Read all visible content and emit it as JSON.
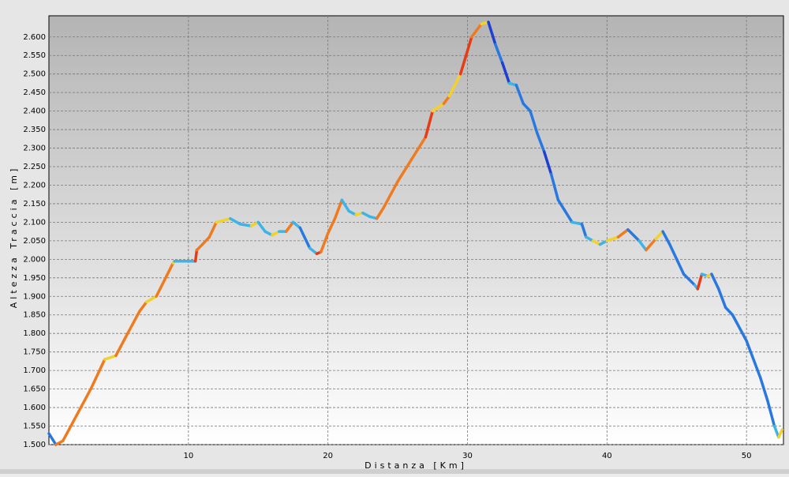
{
  "chart_data": {
    "type": "line",
    "xlabel": "Distanza [Km]",
    "ylabel": "Altezza Traccia [m]",
    "xlim": [
      0,
      52.65
    ],
    "ylim": [
      1500,
      2657
    ],
    "xticks": [
      10,
      20,
      30,
      40,
      50
    ],
    "yticks": [
      {
        "value": 1500,
        "label": "1.500"
      },
      {
        "value": 1550,
        "label": "1.550"
      },
      {
        "value": 1600,
        "label": "1.600"
      },
      {
        "value": 1650,
        "label": "1.650"
      },
      {
        "value": 1700,
        "label": "1.700"
      },
      {
        "value": 1750,
        "label": "1.750"
      },
      {
        "value": 1800,
        "label": "1.800"
      },
      {
        "value": 1850,
        "label": "1.850"
      },
      {
        "value": 1900,
        "label": "1.900"
      },
      {
        "value": 1950,
        "label": "1.950"
      },
      {
        "value": 2000,
        "label": "2.000"
      },
      {
        "value": 2050,
        "label": "2.050"
      },
      {
        "value": 2100,
        "label": "2.100"
      },
      {
        "value": 2150,
        "label": "2.150"
      },
      {
        "value": 2200,
        "label": "2.200"
      },
      {
        "value": 2250,
        "label": "2.250"
      },
      {
        "value": 2300,
        "label": "2.300"
      },
      {
        "value": 2350,
        "label": "2.350"
      },
      {
        "value": 2400,
        "label": "2.400"
      },
      {
        "value": 2450,
        "label": "2.450"
      },
      {
        "value": 2500,
        "label": "2.500"
      },
      {
        "value": 2550,
        "label": "2.550"
      },
      {
        "value": 2600,
        "label": "2.600"
      }
    ],
    "grid": true,
    "x": [
      0,
      0.5,
      1,
      2,
      3,
      4,
      4.8,
      5.5,
      6.5,
      7,
      7.7,
      8.9,
      9,
      10.5,
      10.6,
      11,
      11.5,
      12,
      13,
      13.7,
      14.5,
      15,
      15.5,
      16,
      16.5,
      17,
      17.5,
      18,
      18.7,
      19.2,
      19.5,
      20,
      20.5,
      21,
      21.5,
      22,
      22.5,
      23,
      23.5,
      24,
      25,
      26,
      27,
      27.5,
      28.3,
      28.7,
      29.5,
      30.3,
      31,
      31.5,
      32,
      32.5,
      33,
      33.5,
      34,
      34.5,
      35,
      35.5,
      36,
      36.5,
      37,
      37.5,
      38.2,
      38.5,
      39,
      39.5,
      40,
      40.8,
      41.5,
      42.3,
      42.8,
      43.5,
      44,
      44.5,
      45,
      45.5,
      46.3,
      46.5,
      46.8,
      47.2,
      47.5,
      48,
      48.5,
      49,
      50,
      51,
      51.5,
      52,
      52.3,
      52.55
    ],
    "values": [
      1530,
      1500,
      1510,
      1580,
      1650,
      1730,
      1740,
      1790,
      1860,
      1885,
      1900,
      1990,
      1995,
      1995,
      2025,
      2040,
      2060,
      2100,
      2110,
      2095,
      2090,
      2100,
      2075,
      2065,
      2075,
      2075,
      2100,
      2085,
      2030,
      2015,
      2020,
      2070,
      2110,
      2160,
      2130,
      2120,
      2125,
      2115,
      2110,
      2140,
      2210,
      2270,
      2330,
      2400,
      2420,
      2440,
      2500,
      2600,
      2635,
      2640,
      2580,
      2530,
      2475,
      2470,
      2420,
      2400,
      2340,
      2290,
      2230,
      2160,
      2130,
      2100,
      2095,
      2060,
      2050,
      2040,
      2050,
      2060,
      2080,
      2050,
      2025,
      2055,
      2075,
      2040,
      2000,
      1960,
      1930,
      1920,
      1960,
      1955,
      1960,
      1920,
      1870,
      1850,
      1780,
      1680,
      1620,
      1550,
      1520,
      1540
    ],
    "colors": [
      "#3cb4e6",
      "#2878e0",
      "#f07a1e",
      "#f07a1e",
      "#f07a1e",
      "#f07a1e",
      "#f2d22a",
      "#f07a1e",
      "#f07a1e",
      "#f07a1e",
      "#f2d22a",
      "#f07a1e",
      "#f2d22a",
      "#3cb4e6",
      "#e83a14",
      "#f07a1e",
      "#f07a1e",
      "#f07a1e",
      "#f2d22a",
      "#3cb4e6",
      "#3cb4e6",
      "#f2d22a",
      "#3cb4e6",
      "#3cb4e6",
      "#f2d22a",
      "#3cb4e6",
      "#f07a1e",
      "#3cb4e6",
      "#2878e0",
      "#3cb4e6",
      "#e83a14",
      "#f07a1e",
      "#f07a1e",
      "#f07a1e",
      "#3cb4e6",
      "#3cb4e6",
      "#f2d22a",
      "#3cb4e6",
      "#3cb4e6",
      "#f07a1e",
      "#f07a1e",
      "#f07a1e",
      "#f07a1e",
      "#e83a14",
      "#f2d22a",
      "#f07a1e",
      "#f2d22a",
      "#e83a14",
      "#f07a1e",
      "#f2d22a",
      "#1e40d2",
      "#2878e0",
      "#1e40d2",
      "#3cb4e6",
      "#2878e0",
      "#2878e0",
      "#2878e0",
      "#2878e0",
      "#1e40d2",
      "#2878e0",
      "#2878e0",
      "#2878e0",
      "#3cb4e6",
      "#2878e0",
      "#3cb4e6",
      "#f2d22a",
      "#3cb4e6",
      "#f2d22a",
      "#f07a1e",
      "#2878e0",
      "#3cb4e6",
      "#f07a1e",
      "#f2d22a",
      "#2878e0",
      "#2878e0",
      "#2878e0",
      "#2878e0",
      "#3cb4e6",
      "#e83a14",
      "#3cb4e6",
      "#f2d22a",
      "#2878e0",
      "#2878e0",
      "#2878e0",
      "#2878e0",
      "#2878e0",
      "#2878e0",
      "#2878e0",
      "#3cb4e6",
      "#f2d22a"
    ]
  }
}
